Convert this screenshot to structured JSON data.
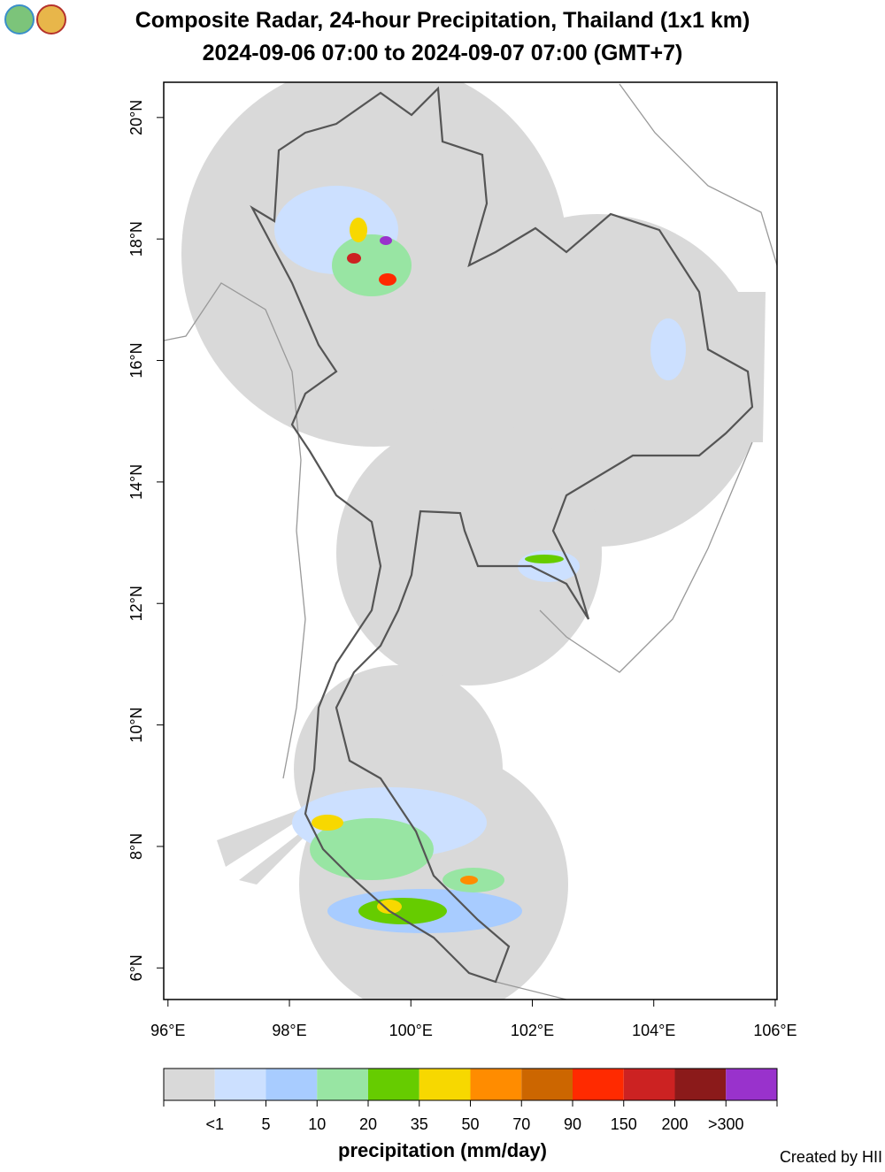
{
  "header": {
    "title": "Composite Radar, 24-hour Precipitation, Thailand (1x1 km)",
    "subtitle": "2024-09-06 07:00 to 2024-09-07 07:00 (GMT+7)"
  },
  "map": {
    "xlim": [
      95.93,
      106.03
    ],
    "ylim": [
      5.48,
      20.58
    ],
    "xticks": [
      {
        "value": 96,
        "label": "96°E"
      },
      {
        "value": 98,
        "label": "98°E"
      },
      {
        "value": 100,
        "label": "100°E"
      },
      {
        "value": 102,
        "label": "102°E"
      },
      {
        "value": 104,
        "label": "104°E"
      },
      {
        "value": 106,
        "label": "106°E"
      }
    ],
    "yticks": [
      {
        "value": 6,
        "label": "6°N"
      },
      {
        "value": 8,
        "label": "8°N"
      },
      {
        "value": 10,
        "label": "10°N"
      },
      {
        "value": 12,
        "label": "12°N"
      },
      {
        "value": 14,
        "label": "14°N"
      },
      {
        "value": 16,
        "label": "16°N"
      },
      {
        "value": 18,
        "label": "18°N"
      },
      {
        "value": 20,
        "label": "20°N"
      }
    ]
  },
  "legend": {
    "title": "precipitation (mm/day)",
    "colors": [
      "#d9d9d9",
      "#cce0ff",
      "#a8ccff",
      "#98e5a3",
      "#66cc00",
      "#f7d800",
      "#ff8c00",
      "#cc6600",
      "#ff2a00",
      "#cc2222",
      "#8b1a1a",
      "#9932cc"
    ],
    "labels": [
      "<1",
      "5",
      "10",
      "20",
      "35",
      "50",
      "70",
      "90",
      "150",
      "200",
      ">300"
    ]
  },
  "footer": {
    "credit": "Created by HII"
  }
}
